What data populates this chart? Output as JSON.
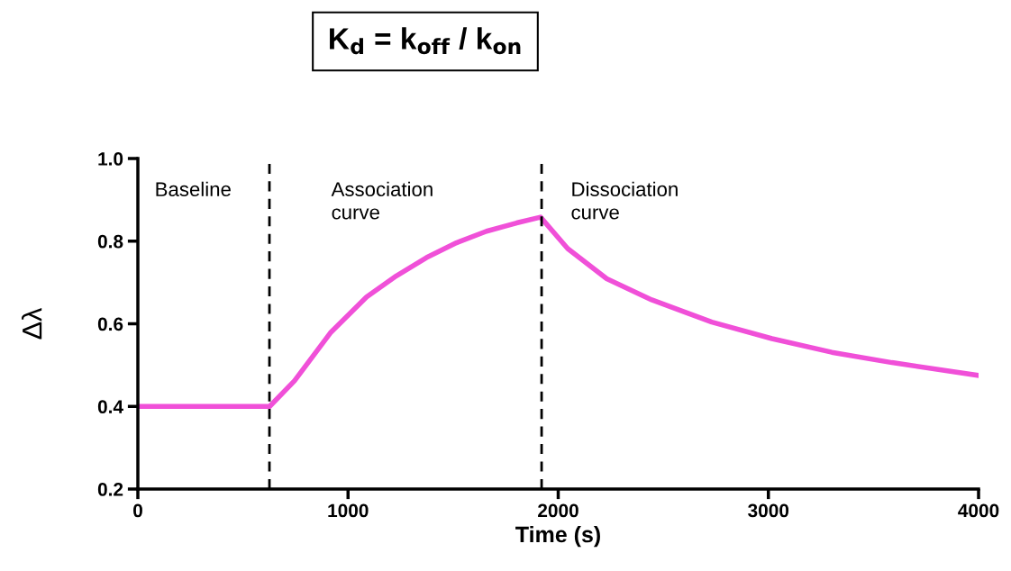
{
  "chart_data": {
    "type": "line",
    "title": "K$_{d}$ = k$_{off}$ / k$_{on}$",
    "xlabel": "Time (s)",
    "ylabel": "Δλ",
    "x": [
      0,
      627,
      745,
      916,
      1088,
      1230,
      1373,
      1516,
      1659,
      1802,
      1916,
      2045,
      2231,
      2445,
      2731,
      3017,
      3302,
      3588,
      4000
    ],
    "series": [
      {
        "color": "#f050d8",
        "values": [
          0.4,
          0.4,
          0.462,
          0.578,
          0.665,
          0.716,
          0.76,
          0.796,
          0.824,
          0.844,
          0.858,
          0.782,
          0.709,
          0.658,
          0.604,
          0.564,
          0.531,
          0.506,
          0.475
        ]
      }
    ],
    "xlim": [
      0,
      4000
    ],
    "xticks": [
      0,
      1000,
      2000,
      3000,
      4000
    ],
    "ylim": [
      0.2,
      1.0
    ],
    "yticks": [
      0.2,
      0.4,
      0.6,
      0.8,
      {
        "value": 1.0,
        "label": "1.0"
      }
    ],
    "ref_lines": [
      {
        "axis": "x",
        "value": 626,
        "color": "#000000",
        "line_style": "dashed"
      },
      {
        "axis": "x",
        "value": 1921,
        "color": "#000000",
        "line_style": "dashed"
      }
    ],
    "annotations": [
      "Baseline",
      "Association\ncurve",
      "Dissociation\ncurve"
    ],
    "grid": false,
    "legend": false,
    "marker": "none",
    "line_style": "solid"
  }
}
